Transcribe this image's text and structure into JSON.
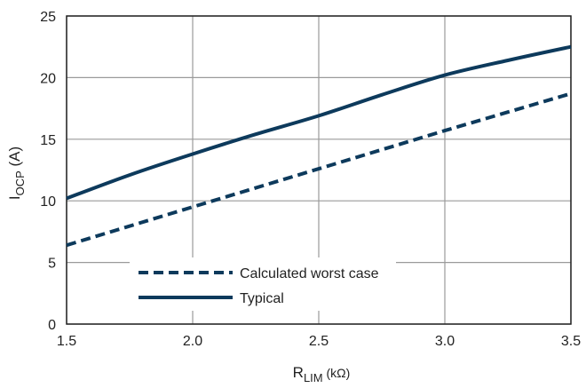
{
  "chart_data": {
    "type": "line",
    "title": "",
    "xlabel": {
      "main": "R",
      "sub": "LIM",
      "unit": " (kΩ)"
    },
    "ylabel": {
      "main": "I",
      "sub": "OCP",
      "unit": " (A)"
    },
    "xlim": [
      1.5,
      3.5
    ],
    "ylim": [
      0,
      25
    ],
    "x_ticks": [
      "1.5",
      "2.0",
      "2.5",
      "3.0",
      "3.5"
    ],
    "y_ticks": [
      "0",
      "5",
      "10",
      "15",
      "20",
      "25"
    ],
    "grid": true,
    "legend_position": "bottom-left",
    "series": [
      {
        "name": "Calculated worst case",
        "style": "dashed",
        "color": "#0d3a5c",
        "x": [
          1.5,
          2.0,
          2.5,
          3.0,
          3.5
        ],
        "y": [
          6.4,
          9.5,
          12.6,
          15.7,
          18.7
        ]
      },
      {
        "name": "Typical",
        "style": "solid",
        "color": "#0d3a5c",
        "x": [
          1.5,
          1.75,
          2.0,
          2.25,
          2.5,
          2.75,
          3.0,
          3.25,
          3.5
        ],
        "y": [
          10.2,
          12.1,
          13.8,
          15.4,
          16.9,
          18.6,
          20.2,
          21.4,
          22.5
        ]
      }
    ]
  }
}
